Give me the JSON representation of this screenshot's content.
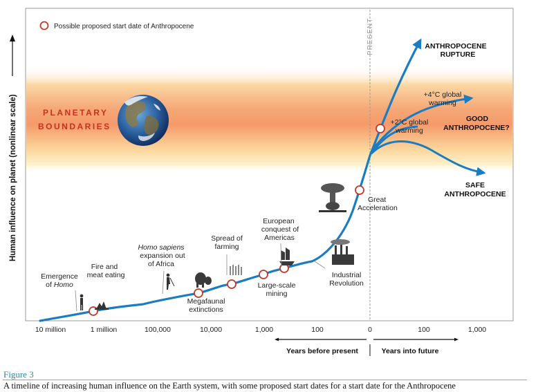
{
  "legend": {
    "label": "Possible proposed start date of Anthropocene"
  },
  "y_axis": {
    "label": "Human influence on planet (nonlinear scale)"
  },
  "present_label": "PRESENT",
  "planetary_boundaries": {
    "line1": "PLANETARY",
    "line2": "BOUNDARIES"
  },
  "x_axis": {
    "ticks": [
      "10 million",
      "1 million",
      "100,000",
      "10,000",
      "1,000",
      "100",
      "0",
      "100",
      "1,000"
    ],
    "past_label": "Years before present",
    "future_label": "Years into future"
  },
  "events": {
    "emergence_homo": {
      "line1": "Emergence",
      "line2_prefix": "of ",
      "line2_italic": "Homo"
    },
    "fire": {
      "line1": "Fire and",
      "line2": "meat eating"
    },
    "homo_sapiens": {
      "line1_italic": "Homo sapiens",
      "line2": "expansion out",
      "line3": "of Africa"
    },
    "megafaunal": {
      "line1": "Megafaunal",
      "line2": "extinctions"
    },
    "farming": {
      "line1": "Spread of",
      "line2": "farming"
    },
    "mining": {
      "line1": "Large-scale",
      "line2": "mining"
    },
    "european": {
      "line1": "European",
      "line2": "conquest of",
      "line3": "Americas"
    },
    "industrial": {
      "line1": "Industrial",
      "line2": "Revolution"
    },
    "great_acceleration": {
      "line1": "Great",
      "line2": "Acceleration"
    }
  },
  "futures": {
    "rupture": {
      "line1": "ANTHROPOCENE",
      "line2": "RUPTURE"
    },
    "plus4": {
      "line1": "+4°C global",
      "line2": "warming"
    },
    "plus2": {
      "line1": "+2°C global",
      "line2": "warming"
    },
    "good": {
      "line1": "GOOD",
      "line2": "ANTHROPOCENE?"
    },
    "safe": {
      "line1": "SAFE",
      "line2": "ANTHROPOCENE"
    }
  },
  "caption": {
    "title": "Figure 3",
    "text": "A timeline of increasing human influence on the Earth system, with some proposed start dates for a start date for the Anthropocene"
  },
  "colors": {
    "curve": "#1a7cc1",
    "marker": "#c0392b",
    "boundary": "#f07a3a",
    "caption": "#1f8fa6"
  }
}
